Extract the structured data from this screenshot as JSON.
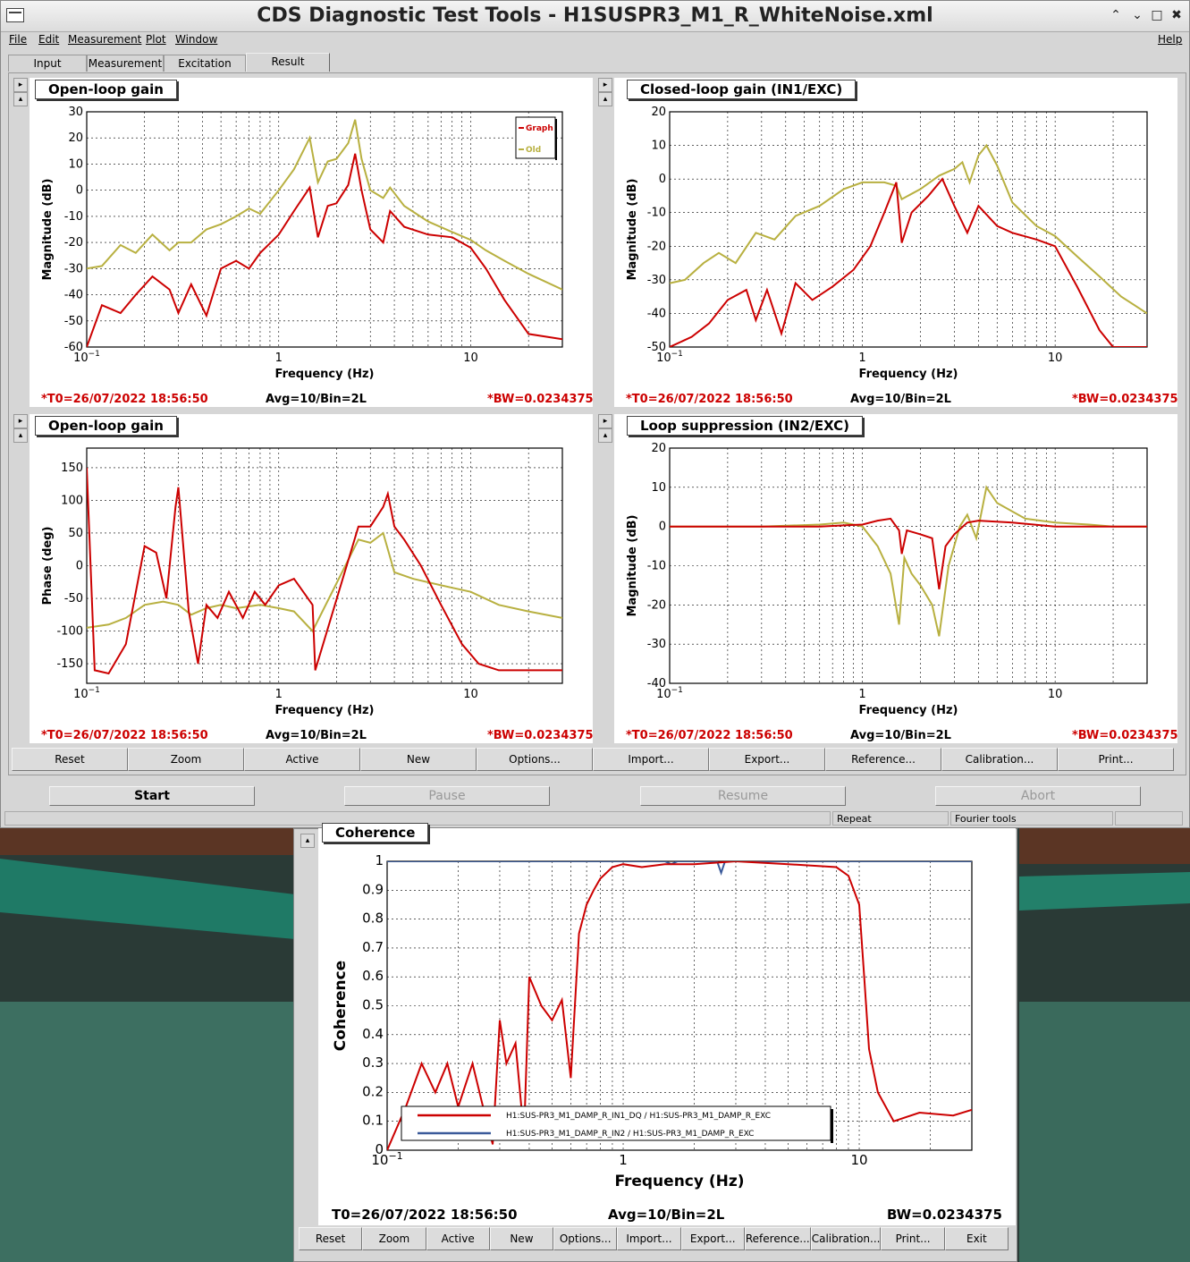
{
  "window": {
    "title": "CDS Diagnostic Test Tools - H1SUSPR3_M1_R_WhiteNoise.xml",
    "controls": [
      "⌃",
      "⌄",
      "□",
      "✖"
    ]
  },
  "menu": [
    "File",
    "Edit",
    "Measurement",
    "Plot",
    "Window",
    "Help"
  ],
  "tabs": [
    "Input",
    "Measurement",
    "Excitation",
    "Result"
  ],
  "active_tab": "Result",
  "plot_footer": {
    "t0": "*T0=26/07/2022 18:56:50",
    "avg": "Avg=10/Bin=2L",
    "bw": "*BW=0.0234375"
  },
  "panels": {
    "ol_mag": {
      "title": "Open-loop gain"
    },
    "cl_mag": {
      "title": "Closed-loop gain (IN1/EXC)"
    },
    "ol_phase": {
      "title": "Open-loop gain"
    },
    "loop_supp": {
      "title": "Loop suppression (IN2/EXC)"
    }
  },
  "legend_small": [
    "Graph",
    "Old"
  ],
  "plot_buttons": [
    "Reset",
    "Zoom",
    "Active",
    "New",
    "Options...",
    "Import...",
    "Export...",
    "Reference...",
    "Calibration...",
    "Print..."
  ],
  "controls": {
    "start": "Start",
    "pause": "Pause",
    "resume": "Resume",
    "abort": "Abort"
  },
  "status": {
    "repeat": "Repeat",
    "fourier": "Fourier tools"
  },
  "coherence": {
    "title": "Coherence",
    "ylabel": "Coherence",
    "xlabel": "Frequency (Hz)",
    "t0": "T0=26/07/2022 18:56:50",
    "avg": "Avg=10/Bin=2L",
    "bw": "BW=0.0234375",
    "legend": [
      "H1:SUS-PR3_M1_DAMP_R_IN1_DQ / H1:SUS-PR3_M1_DAMP_R_EXC",
      "H1:SUS-PR3_M1_DAMP_R_IN2 / H1:SUS-PR3_M1_DAMP_R_EXC"
    ],
    "buttons": [
      "Reset",
      "Zoom",
      "Active",
      "New",
      "Options...",
      "Import...",
      "Export...",
      "Reference...",
      "Calibration...",
      "Print...",
      "Exit"
    ]
  },
  "colors": {
    "graph": "#cc0000",
    "old": "#b8b040",
    "blue": "#3a5a9a"
  },
  "chart_data": [
    {
      "name": "ol_mag",
      "type": "line",
      "xscale": "log",
      "xlim": [
        0.1,
        30
      ],
      "ylim": [
        -60,
        30
      ],
      "xlabel": "Frequency (Hz)",
      "ylabel": "Magnitude (dB)",
      "yticks": [
        -60,
        -50,
        -40,
        -30,
        -20,
        -10,
        0,
        10,
        20,
        30
      ],
      "series": [
        {
          "name": "Graph",
          "color": "#cc0000",
          "x": [
            0.1,
            0.12,
            0.15,
            0.18,
            0.22,
            0.27,
            0.3,
            0.35,
            0.42,
            0.5,
            0.6,
            0.7,
            0.8,
            1.0,
            1.2,
            1.45,
            1.6,
            1.8,
            2.0,
            2.3,
            2.5,
            2.7,
            3.0,
            3.5,
            3.8,
            4.5,
            6,
            8,
            10,
            12,
            15,
            20,
            30
          ],
          "y": [
            -60,
            -44,
            -47,
            -40,
            -33,
            -38,
            -47,
            -36,
            -48,
            -30,
            -27,
            -30,
            -24,
            -17,
            -8,
            1,
            -18,
            -6,
            -5,
            2,
            14,
            0,
            -15,
            -20,
            -8,
            -14,
            -17,
            -18,
            -22,
            -30,
            -42,
            -55,
            -57
          ]
        },
        {
          "name": "Old",
          "color": "#b8b040",
          "x": [
            0.1,
            0.12,
            0.15,
            0.18,
            0.22,
            0.27,
            0.3,
            0.35,
            0.42,
            0.5,
            0.6,
            0.7,
            0.8,
            1.0,
            1.2,
            1.45,
            1.6,
            1.8,
            2.0,
            2.3,
            2.5,
            2.7,
            3.0,
            3.5,
            3.8,
            4.5,
            6,
            8,
            10,
            12,
            15,
            20,
            30
          ],
          "y": [
            -30,
            -29,
            -21,
            -24,
            -17,
            -23,
            -20,
            -20,
            -15,
            -13,
            -10,
            -7,
            -9,
            0,
            8,
            20,
            3,
            11,
            12,
            18,
            27,
            12,
            0,
            -3,
            1,
            -6,
            -12,
            -16,
            -19,
            -23,
            -27,
            -32,
            -38
          ]
        }
      ]
    },
    {
      "name": "cl_mag",
      "type": "line",
      "xscale": "log",
      "xlim": [
        0.1,
        30
      ],
      "ylim": [
        -50,
        20
      ],
      "xlabel": "Frequency (Hz)",
      "ylabel": "Magnitude (dB)",
      "yticks": [
        -50,
        -40,
        -30,
        -20,
        -10,
        0,
        10,
        20
      ],
      "series": [
        {
          "name": "Graph",
          "color": "#cc0000",
          "x": [
            0.1,
            0.13,
            0.16,
            0.2,
            0.25,
            0.28,
            0.32,
            0.38,
            0.45,
            0.55,
            0.7,
            0.9,
            1.1,
            1.3,
            1.5,
            1.6,
            1.8,
            2.2,
            2.6,
            3.0,
            3.5,
            4.0,
            5,
            6,
            8,
            10,
            13,
            17,
            20,
            30
          ],
          "y": [
            -50,
            -47,
            -43,
            -36,
            -33,
            -42,
            -33,
            -46,
            -31,
            -36,
            -32,
            -27,
            -20,
            -10,
            -1,
            -19,
            -10,
            -5,
            0,
            -8,
            -16,
            -8,
            -14,
            -16,
            -18,
            -20,
            -32,
            -45,
            -50,
            -50
          ]
        },
        {
          "name": "Old",
          "color": "#b8b040",
          "x": [
            0.1,
            0.12,
            0.15,
            0.18,
            0.22,
            0.28,
            0.35,
            0.45,
            0.6,
            0.8,
            1.0,
            1.3,
            1.5,
            1.6,
            2.0,
            2.5,
            3.0,
            3.3,
            3.6,
            4.0,
            4.4,
            5.0,
            6.0,
            8,
            10,
            13,
            17,
            22,
            30
          ],
          "y": [
            -31,
            -30,
            -25,
            -22,
            -25,
            -16,
            -18,
            -11,
            -8,
            -3,
            -1,
            -1,
            -2,
            -6,
            -3,
            1,
            3,
            5,
            -1,
            7,
            10,
            4,
            -7,
            -14,
            -17,
            -23,
            -29,
            -35,
            -40
          ]
        }
      ]
    },
    {
      "name": "ol_phase",
      "type": "line",
      "xscale": "log",
      "xlim": [
        0.1,
        30
      ],
      "ylim": [
        -180,
        180
      ],
      "xlabel": "Frequency (Hz)",
      "ylabel": "Phase (deg)",
      "yticks": [
        -150,
        -100,
        -50,
        0,
        50,
        100,
        150
      ],
      "series": [
        {
          "name": "Graph",
          "color": "#cc0000",
          "x": [
            0.1,
            0.11,
            0.13,
            0.16,
            0.2,
            0.23,
            0.26,
            0.29,
            0.3,
            0.34,
            0.38,
            0.42,
            0.48,
            0.55,
            0.65,
            0.75,
            0.85,
            1.0,
            1.2,
            1.5,
            1.55,
            2.6,
            3.0,
            3.5,
            3.7,
            4.0,
            4.5,
            5.5,
            7,
            9,
            11,
            14,
            20,
            30
          ],
          "y": [
            150,
            -160,
            -165,
            -120,
            30,
            20,
            -50,
            90,
            120,
            -70,
            -150,
            -60,
            -80,
            -40,
            -80,
            -40,
            -60,
            -30,
            -20,
            -60,
            -160,
            60,
            60,
            90,
            110,
            60,
            40,
            0,
            -60,
            -120,
            -150,
            -160,
            -160,
            -160
          ]
        },
        {
          "name": "Old",
          "color": "#b8b040",
          "x": [
            0.1,
            0.13,
            0.16,
            0.2,
            0.25,
            0.3,
            0.35,
            0.42,
            0.5,
            0.6,
            0.8,
            1.0,
            1.2,
            1.5,
            2.6,
            3.0,
            3.5,
            4.0,
            5,
            7,
            10,
            14,
            20,
            30
          ],
          "y": [
            -95,
            -90,
            -80,
            -60,
            -55,
            -60,
            -75,
            -65,
            -60,
            -65,
            -60,
            -65,
            -70,
            -100,
            40,
            35,
            50,
            -10,
            -20,
            -30,
            -40,
            -60,
            -70,
            -80
          ]
        }
      ]
    },
    {
      "name": "loop_supp",
      "type": "line",
      "xscale": "log",
      "xlim": [
        0.1,
        30
      ],
      "ylim": [
        -40,
        20
      ],
      "xlabel": "Frequency (Hz)",
      "ylabel": "Magnitude (dB)",
      "yticks": [
        -40,
        -30,
        -20,
        -10,
        0,
        10,
        20
      ],
      "series": [
        {
          "name": "Graph",
          "color": "#cc0000",
          "x": [
            0.1,
            0.2,
            0.4,
            0.6,
            0.8,
            1.0,
            1.2,
            1.4,
            1.55,
            1.6,
            1.7,
            2.0,
            2.3,
            2.5,
            2.7,
            3.0,
            3.5,
            4,
            6,
            10,
            20,
            30
          ],
          "y": [
            0,
            0,
            0,
            0,
            0.3,
            0.5,
            1.5,
            2,
            -1,
            -7,
            -1,
            -2,
            -3,
            -16,
            -5,
            -2,
            1,
            1.5,
            1,
            0,
            0,
            0
          ]
        },
        {
          "name": "Old",
          "color": "#b8b040",
          "x": [
            0.1,
            0.3,
            0.6,
            0.8,
            1.0,
            1.2,
            1.4,
            1.55,
            1.65,
            1.8,
            2.0,
            2.3,
            2.5,
            2.8,
            3.2,
            3.5,
            3.9,
            4.4,
            5,
            7,
            10,
            15,
            20,
            30
          ],
          "y": [
            0,
            0,
            0.5,
            1,
            0,
            -5,
            -12,
            -25,
            -8,
            -12,
            -15,
            -20,
            -28,
            -10,
            0,
            3,
            -3,
            10,
            6,
            2,
            1,
            0.5,
            0,
            0
          ]
        }
      ]
    },
    {
      "name": "coherence",
      "type": "line",
      "xscale": "log",
      "xlim": [
        0.1,
        30
      ],
      "ylim": [
        0,
        1
      ],
      "xlabel": "Frequency (Hz)",
      "ylabel": "Coherence",
      "yticks": [
        0,
        0.1,
        0.2,
        0.3,
        0.4,
        0.5,
        0.6,
        0.7,
        0.8,
        0.9,
        1
      ],
      "series": [
        {
          "name": "H1:SUS-PR3_M1_DAMP_R_IN1_DQ / H1:SUS-PR3_M1_DAMP_R_EXC",
          "color": "#cc0000",
          "x": [
            0.1,
            0.12,
            0.14,
            0.16,
            0.18,
            0.2,
            0.23,
            0.26,
            0.28,
            0.3,
            0.32,
            0.35,
            0.38,
            0.4,
            0.45,
            0.5,
            0.55,
            0.6,
            0.65,
            0.7,
            0.75,
            0.8,
            0.9,
            1.0,
            1.2,
            1.5,
            2,
            3,
            5,
            8,
            9,
            10,
            10.5,
            11,
            12,
            14,
            18,
            25,
            30
          ],
          "y": [
            0,
            0.15,
            0.3,
            0.2,
            0.3,
            0.15,
            0.3,
            0.12,
            0.02,
            0.45,
            0.3,
            0.37,
            0.05,
            0.6,
            0.5,
            0.45,
            0.52,
            0.25,
            0.75,
            0.85,
            0.9,
            0.94,
            0.98,
            0.99,
            0.98,
            0.99,
            0.99,
            1.0,
            0.99,
            0.98,
            0.95,
            0.85,
            0.6,
            0.35,
            0.2,
            0.1,
            0.13,
            0.12,
            0.14
          ]
        },
        {
          "name": "H1:SUS-PR3_M1_DAMP_R_IN2 / H1:SUS-PR3_M1_DAMP_R_EXC",
          "color": "#3a5a9a",
          "x": [
            0.1,
            1.5,
            1.6,
            1.7,
            2.5,
            2.6,
            2.7,
            30
          ],
          "y": [
            1,
            1,
            0.99,
            1,
            1,
            0.96,
            1,
            1
          ]
        }
      ]
    }
  ]
}
